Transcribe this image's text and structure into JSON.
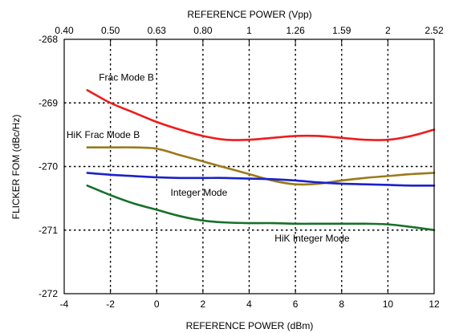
{
  "chart_data": {
    "type": "line",
    "xlabel": "REFERENCE POWER (dBm)",
    "ylabel": "FLICKER FOM (dBc/Hz)",
    "top_xlabel": "REFERENCE POWER (Vpp)",
    "xlim": [
      -4,
      12
    ],
    "ylim": [
      -272,
      -268
    ],
    "x_ticks": [
      -4,
      -2,
      0,
      2,
      4,
      6,
      8,
      10,
      12
    ],
    "x_tick_labels": [
      "-4",
      "-2",
      "0",
      "2",
      "4",
      "6",
      "8",
      "10",
      "12"
    ],
    "y_ticks": [
      -268,
      -269,
      -270,
      -271,
      -272
    ],
    "y_tick_labels": [
      "-268",
      "-269",
      "-270",
      "-271",
      "-272"
    ],
    "top_ticks": [
      {
        "dbm": -4,
        "label": "0.40"
      },
      {
        "dbm": -2,
        "label": "0.50"
      },
      {
        "dbm": 0,
        "label": "0.63"
      },
      {
        "dbm": 2,
        "label": "0.80"
      },
      {
        "dbm": 4,
        "label": "1"
      },
      {
        "dbm": 6,
        "label": "1.26"
      },
      {
        "dbm": 8,
        "label": "1.59"
      },
      {
        "dbm": 10,
        "label": "2"
      },
      {
        "dbm": 12,
        "label": "2.52"
      }
    ],
    "grid": true,
    "series": [
      {
        "name": "Frac Mode B",
        "color": "#ee1c1c",
        "label_at": [
          -2.5,
          -268.65
        ],
        "x": [
          -3,
          -2,
          -1,
          0,
          1,
          2,
          3,
          4,
          5,
          6,
          7,
          8,
          9,
          10,
          11,
          12
        ],
        "y": [
          -268.8,
          -269.0,
          -269.15,
          -269.3,
          -269.42,
          -269.52,
          -269.58,
          -269.58,
          -269.55,
          -269.52,
          -269.52,
          -269.55,
          -269.58,
          -269.58,
          -269.52,
          -269.42
        ]
      },
      {
        "name": "HiK Frac Mode B",
        "color": "#9a7a1a",
        "label_at": [
          -3.9,
          -269.55
        ],
        "x": [
          -3,
          -2,
          -1,
          0,
          1,
          2,
          3,
          4,
          5,
          6,
          7,
          8,
          9,
          10,
          11,
          12
        ],
        "y": [
          -269.7,
          -269.7,
          -269.7,
          -269.72,
          -269.82,
          -269.92,
          -270.02,
          -270.12,
          -270.22,
          -270.28,
          -270.27,
          -270.22,
          -270.18,
          -270.15,
          -270.12,
          -270.1
        ]
      },
      {
        "name": "Integer Mode",
        "color": "#1a22c8",
        "label_at": [
          0.6,
          -270.46
        ],
        "x": [
          -3,
          -2,
          -1,
          0,
          1,
          2,
          3,
          4,
          5,
          6,
          7,
          8,
          9,
          10,
          11,
          12
        ],
        "y": [
          -270.1,
          -270.13,
          -270.15,
          -270.17,
          -270.18,
          -270.18,
          -270.18,
          -270.19,
          -270.2,
          -270.22,
          -270.25,
          -270.27,
          -270.28,
          -270.29,
          -270.3,
          -270.3
        ]
      },
      {
        "name": "HiK Integer Mode",
        "color": "#16702a",
        "label_at": [
          5.1,
          -271.18
        ],
        "x": [
          -3,
          -2,
          -1,
          0,
          1,
          2,
          3,
          4,
          5,
          6,
          7,
          8,
          9,
          10,
          11,
          12
        ],
        "y": [
          -270.3,
          -270.45,
          -270.58,
          -270.68,
          -270.78,
          -270.85,
          -270.88,
          -270.89,
          -270.89,
          -270.9,
          -270.9,
          -270.9,
          -270.9,
          -270.91,
          -270.95,
          -271.0
        ]
      }
    ]
  }
}
